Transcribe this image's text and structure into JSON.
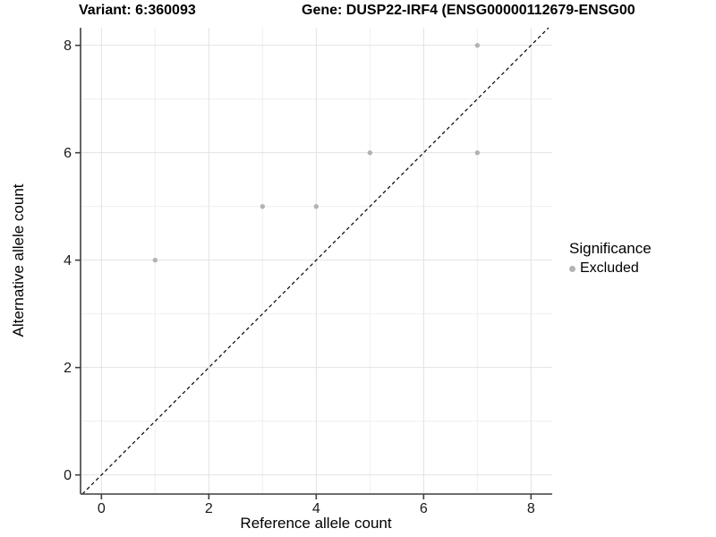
{
  "titles": {
    "left": "Variant: 6:360093",
    "right": "Gene: DUSP22-IRF4 (ENSG00000112679-ENSG00"
  },
  "chart_data": {
    "type": "scatter",
    "title": "Variant: 6:360093",
    "right_title": "Gene: DUSP22-IRF4 (ENSG00000112679-ENSG00",
    "xlabel": "Reference allele count",
    "ylabel": "Alternative allele count",
    "xlim": [
      -0.4,
      8.4
    ],
    "ylim": [
      -0.36,
      8.33
    ],
    "x_ticks": [
      0,
      2,
      4,
      6,
      8
    ],
    "y_ticks": [
      0,
      2,
      4,
      6,
      8
    ],
    "x_minor": [
      1,
      3,
      5,
      7
    ],
    "y_minor": [
      1,
      3,
      5,
      7
    ],
    "grid": "major-and-minor",
    "legend_position": "right",
    "series": [
      {
        "name": "Excluded",
        "color": "#b3b3b3",
        "points": [
          [
            1,
            4
          ],
          [
            3,
            5
          ],
          [
            4,
            5
          ],
          [
            5,
            6
          ],
          [
            7,
            6
          ],
          [
            7,
            8
          ]
        ]
      }
    ],
    "reference_line": {
      "type": "identity",
      "style": "dashed",
      "color": "#000000"
    },
    "legend": {
      "title": "Significance",
      "items": [
        {
          "label": "Excluded",
          "color": "#b3b3b3"
        }
      ]
    }
  },
  "colors": {
    "point": "#b3b3b3",
    "grid_major": "#e2e2e2",
    "grid_minor": "#efefef",
    "axis_line": "#3f3f3f",
    "tick_label": "#1a1a1a",
    "reference_line": "#000000"
  }
}
